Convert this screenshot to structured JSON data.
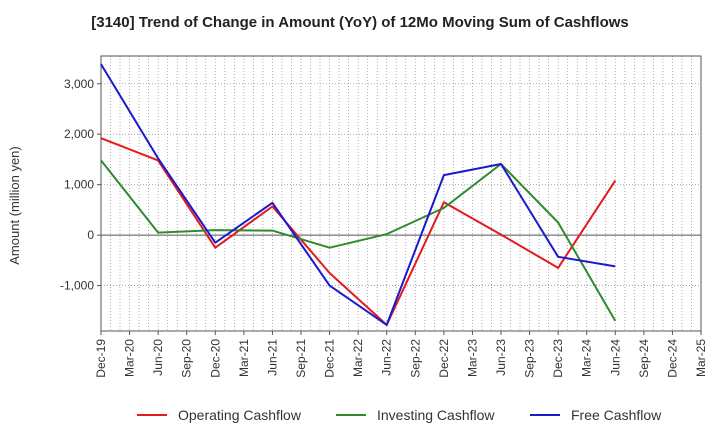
{
  "chart_data": {
    "type": "line",
    "title": "[3140]  Trend of Change in Amount (YoY) of 12Mo Moving Sum of Cashflows",
    "xlabel": "",
    "ylabel": "Amount (million yen)",
    "categories": [
      "Dec-19",
      "Mar-20",
      "Jun-20",
      "Sep-20",
      "Dec-20",
      "Mar-21",
      "Jun-21",
      "Sep-21",
      "Dec-21",
      "Mar-22",
      "Jun-22",
      "Sep-22",
      "Dec-22",
      "Mar-23",
      "Jun-23",
      "Sep-23",
      "Dec-23",
      "Mar-24",
      "Jun-24",
      "Sep-24",
      "Dec-24",
      "Mar-25"
    ],
    "ylim": [
      -1900,
      3550
    ],
    "yticks": [
      -1000,
      0,
      1000,
      2000,
      3000
    ],
    "ytick_labels": [
      "-1,000",
      "0",
      "1,000",
      "2,000",
      "3,000"
    ],
    "grid": true,
    "legend_position": "bottom",
    "series": [
      {
        "name": "Operating Cashflow",
        "color": "#e41a1c",
        "values": [
          1920,
          null,
          1480,
          null,
          -250,
          null,
          570,
          null,
          -750,
          null,
          -1780,
          null,
          650,
          null,
          10,
          null,
          -650,
          null,
          1080,
          null,
          null,
          null
        ]
      },
      {
        "name": "Investing Cashflow",
        "color": "#2e8b2e",
        "values": [
          1480,
          null,
          50,
          null,
          100,
          null,
          90,
          null,
          -250,
          null,
          20,
          null,
          540,
          null,
          1410,
          null,
          250,
          null,
          -1700,
          null,
          null,
          null
        ]
      },
      {
        "name": "Free Cashflow",
        "color": "#1a1acc",
        "values": [
          3390,
          null,
          1520,
          null,
          -150,
          null,
          640,
          null,
          -1000,
          null,
          -1780,
          null,
          1190,
          null,
          1410,
          null,
          -430,
          null,
          -620,
          null,
          null,
          null
        ]
      }
    ]
  }
}
